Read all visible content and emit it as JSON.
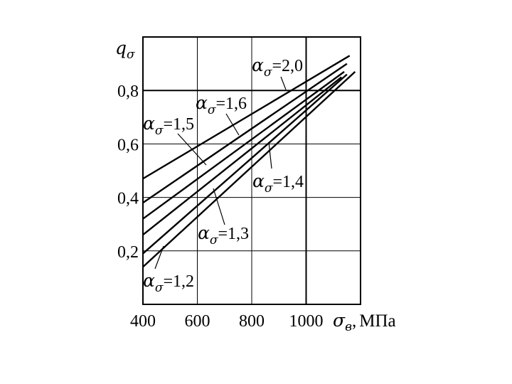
{
  "chart_data": {
    "type": "line",
    "xlabel": {
      "symbol": "σ",
      "sub": "в",
      "suffix": ",",
      "unit": "МПа"
    },
    "ylabel": {
      "symbol": "q",
      "sub": "σ"
    },
    "xlim": [
      400,
      1200
    ],
    "ylim": [
      0.0,
      1.0
    ],
    "x_ticks": [
      {
        "value": 400,
        "label": "400"
      },
      {
        "value": 600,
        "label": "600"
      },
      {
        "value": 800,
        "label": "800"
      },
      {
        "value": 1000,
        "label": "1000"
      }
    ],
    "y_ticks": [
      {
        "value": 0.2,
        "label": "0,2"
      },
      {
        "value": 0.4,
        "label": "0,4"
      },
      {
        "value": 0.6,
        "label": "0,6"
      },
      {
        "value": 0.8,
        "label": "0,8"
      }
    ],
    "grid": true,
    "series": [
      {
        "name": "α=2,0",
        "symbol": "α",
        "sub": "σ",
        "value": "=2,0",
        "x": [
          400,
          1160
        ],
        "y": [
          0.47,
          0.93
        ]
      },
      {
        "name": "α=1,6",
        "symbol": "α",
        "sub": "σ",
        "value": "=1,6",
        "x": [
          400,
          1150
        ],
        "y": [
          0.38,
          0.9
        ]
      },
      {
        "name": "α=1,5",
        "symbol": "α",
        "sub": "σ",
        "value": "=1,5",
        "x": [
          400,
          1140
        ],
        "y": [
          0.32,
          0.87
        ]
      },
      {
        "name": "α=1,4",
        "symbol": "α",
        "sub": "σ",
        "value": "=1,4",
        "x": [
          400,
          1130
        ],
        "y": [
          0.26,
          0.85
        ]
      },
      {
        "name": "α=1,3",
        "symbol": "α",
        "sub": "σ",
        "value": "=1,3",
        "x": [
          400,
          1150
        ],
        "y": [
          0.19,
          0.86
        ]
      },
      {
        "name": "α=1,2",
        "symbol": "α",
        "sub": "σ",
        "value": "=1,2",
        "x": [
          400,
          1180
        ],
        "y": [
          0.14,
          0.87
        ]
      }
    ]
  }
}
